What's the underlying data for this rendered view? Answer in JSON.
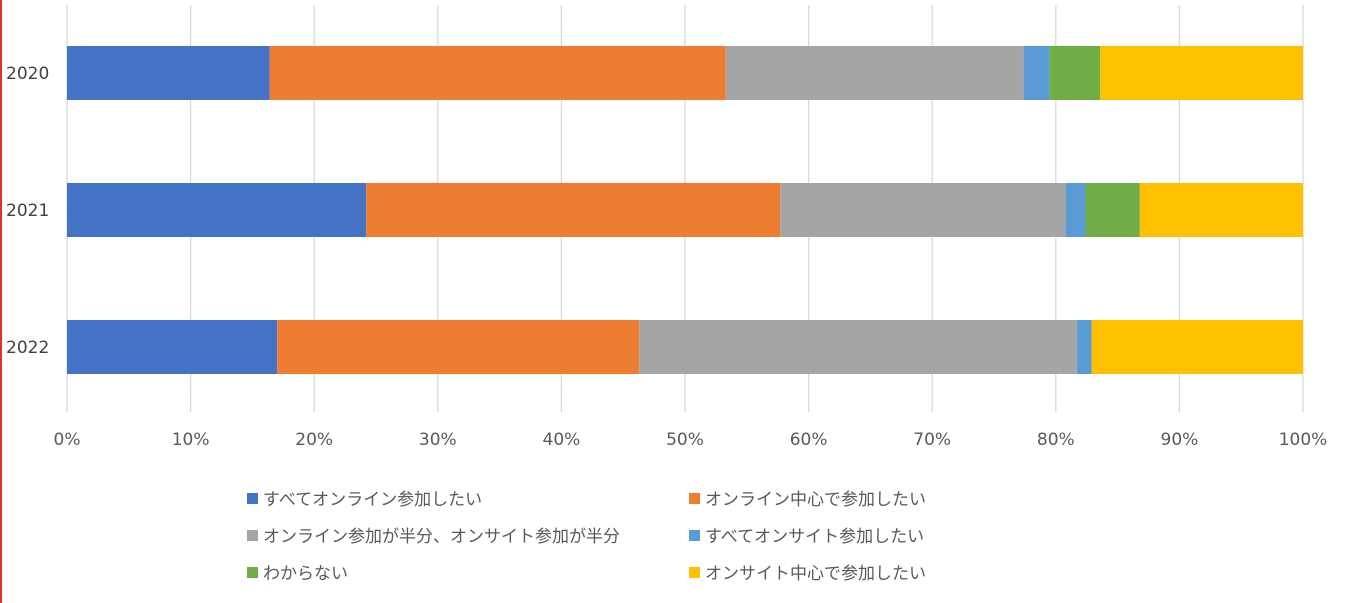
{
  "chart_data": {
    "type": "bar",
    "orientation": "horizontal",
    "stacked": "percent",
    "categories": [
      "2020",
      "2021",
      "2022"
    ],
    "series": [
      {
        "name": "すべてオンライン参加したい",
        "color": "#4472C4",
        "values": [
          16.4,
          24.2,
          17.0
        ]
      },
      {
        "name": "オンライン中心で参加したい",
        "color": "#ED7D31",
        "values": [
          36.9,
          33.5,
          29.3
        ]
      },
      {
        "name": "オンライン参加が半分、オンサイト参加が半分",
        "color": "#A5A5A5",
        "values": [
          24.1,
          23.1,
          35.4
        ]
      },
      {
        "name": "すべてオンサイト参加したい",
        "color": "#5B9BD5",
        "values": [
          2.1,
          1.6,
          1.2
        ]
      },
      {
        "name": "わからない",
        "color": "#70AD47",
        "values": [
          4.1,
          4.4,
          0.0
        ]
      },
      {
        "name": "オンサイト中心で参加したい",
        "color": "#FFC000",
        "values": [
          16.4,
          13.2,
          17.1
        ]
      }
    ],
    "xticks": [
      "0%",
      "10%",
      "20%",
      "30%",
      "40%",
      "50%",
      "60%",
      "70%",
      "80%",
      "90%",
      "100%"
    ],
    "xlim": [
      0,
      100
    ],
    "grid": true,
    "legend_position": "bottom"
  }
}
